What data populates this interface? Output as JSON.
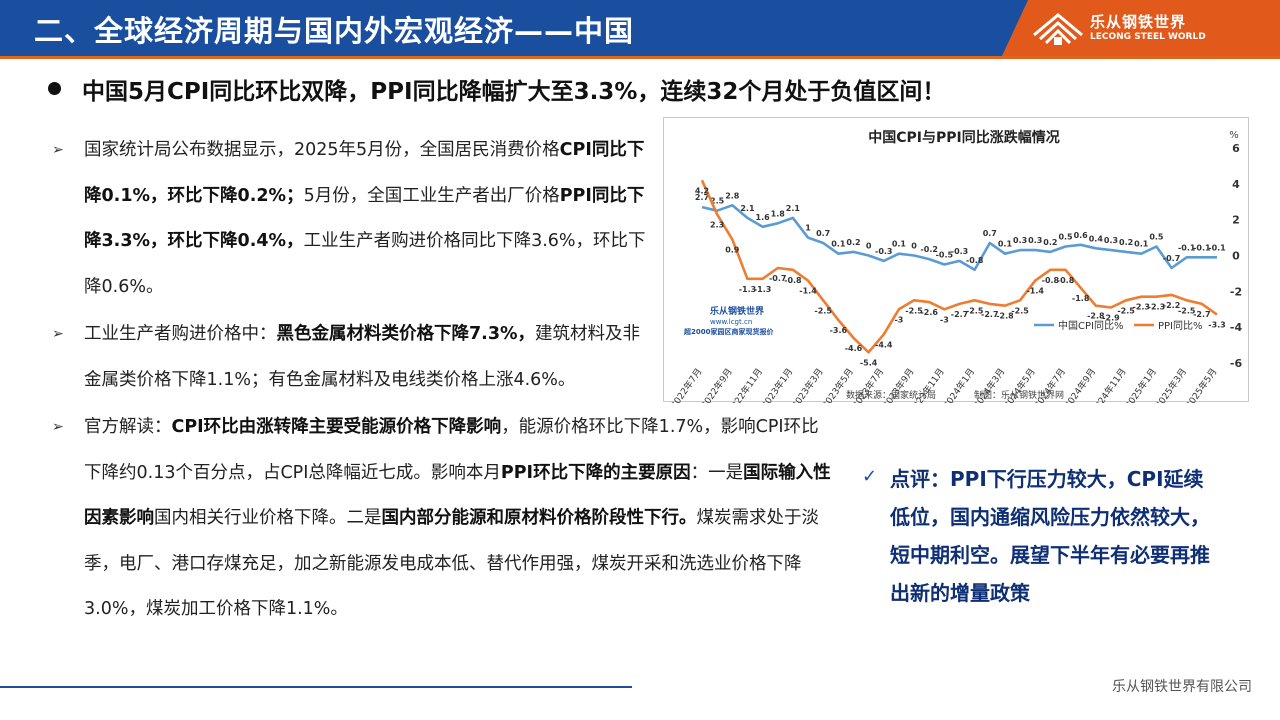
{
  "header": {
    "title": "二、全球经济周期与国内外宏观经济——中国",
    "logo_cn": "乐从钢铁世界",
    "logo_en": "LECONG STEEL WORLD",
    "accent_color": "#1a4fa0",
    "logo_color": "#e15a1c"
  },
  "headline": "中国5月CPI同比环比双降，PPI同比降幅扩大至3.3%，连续32个月处于负值区间！",
  "bullets": {
    "b1": {
      "p1": "国家统计局公布数据显示，2025年5月份，全国居民消费价格",
      "p2": "CPI同比下降0.1%，环比下降0.2%；",
      "p3": "5月份，全国工业生产者出厂价格",
      "p4": "PPI同比下降3.3%，环比下降0.4%，",
      "p5": "工业生产者购进价格同比下降3.6%，环比下降0.6%。"
    },
    "b2": {
      "p1": "工业生产者购进价格中：",
      "p2": "黑色金属材料类价格下降7.3%，",
      "p3": "建筑材料及非金属类价格下降1.1%；有色金属材料及电线类价格上涨4.6%。"
    },
    "b3": {
      "p1": "官方解读：",
      "p2": "CPI环比由涨转降主要受能源价格下降影响",
      "p3": "，能源价格环比下降1.7%，影响CPI环比下降约0.13个百分点，占CPI总降幅近七成。影响本月",
      "p4": "PPI环比下降的主要原因",
      "p5": "：一是",
      "p6": "国际输入性因素影响",
      "p7": "国内相关行业价格下降。二是",
      "p8": "国内部分能源和原材料价格阶段性下行。",
      "p9": "煤炭需求处于淡季，电厂、港口存煤充足，加之新能源发电成本低、替代作用强，煤炭开采和洗选业价格下降3.0%，煤炭加工价格下降1.1%。"
    }
  },
  "comment": {
    "icon": "check-icon",
    "text": "点评：PPI下行压力较大，CPI延续低位，国内通缩风险压力依然较大，短中期利空。展望下半年有必要再推出新的增量政策"
  },
  "footer": {
    "company": "乐从钢铁世界有限公司"
  },
  "chart_data": {
    "type": "line",
    "title": "中国CPI与PPI同比涨跌幅情况",
    "y_unit": "%",
    "ylim": [
      -6,
      6
    ],
    "y_ticks": [
      6,
      4,
      2,
      0,
      -2,
      -4,
      -6
    ],
    "x_ticks": [
      "2022年7月",
      "2022年9月",
      "2022年11月",
      "2023年1月",
      "2023年3月",
      "2023年5月",
      "2023年7月",
      "2023年9月",
      "2023年11月",
      "2024年1月",
      "2024年3月",
      "2024年5月",
      "2024年7月",
      "2024年9月",
      "2024年11月",
      "2025年1月",
      "2025年3月",
      "2025年5月"
    ],
    "x": [
      "2022-07",
      "2022-08",
      "2022-09",
      "2022-10",
      "2022-11",
      "2022-12",
      "2023-01",
      "2023-02",
      "2023-03",
      "2023-04",
      "2023-05",
      "2023-06",
      "2023-07",
      "2023-08",
      "2023-09",
      "2023-10",
      "2023-11",
      "2023-12",
      "2024-01",
      "2024-02",
      "2024-03",
      "2024-04",
      "2024-05",
      "2024-06",
      "2024-07",
      "2024-08",
      "2024-09",
      "2024-10",
      "2024-11",
      "2024-12",
      "2025-01",
      "2025-02",
      "2025-03",
      "2025-04",
      "2025-05"
    ],
    "series": [
      {
        "name": "中国CPI同比%",
        "color": "#5b9bd5",
        "values": [
          2.7,
          2.5,
          2.8,
          2.1,
          1.6,
          1.8,
          2.1,
          1.0,
          0.7,
          0.1,
          0.2,
          0.0,
          -0.3,
          0.1,
          0.0,
          -0.2,
          -0.5,
          -0.3,
          -0.8,
          0.7,
          0.1,
          0.3,
          0.3,
          0.2,
          0.5,
          0.6,
          0.4,
          0.3,
          0.2,
          0.1,
          0.5,
          -0.7,
          -0.1,
          -0.1,
          -0.1
        ]
      },
      {
        "name": "PPI同比%",
        "color": "#ed7d31",
        "values": [
          4.2,
          2.3,
          0.9,
          -1.3,
          -1.3,
          -0.7,
          -0.8,
          -1.4,
          -2.5,
          -3.6,
          -4.6,
          -5.4,
          -4.4,
          -3.0,
          -2.5,
          -2.6,
          -3.0,
          -2.7,
          -2.5,
          -2.7,
          -2.8,
          -2.5,
          -1.4,
          -0.8,
          -0.8,
          -1.8,
          -2.8,
          -2.9,
          -2.5,
          -2.3,
          -2.3,
          -2.2,
          -2.5,
          -2.7,
          -3.3
        ]
      }
    ],
    "grid": false,
    "legend_position": "bottom-right",
    "source_note": "数据来源：国家统计局",
    "maker_note": "制图：乐从钢铁世界网",
    "watermark_cn": "乐从钢铁世界",
    "watermark_url": "www.lcgt.cn",
    "watermark_tagline": "超2000家园区商家现货报价"
  }
}
